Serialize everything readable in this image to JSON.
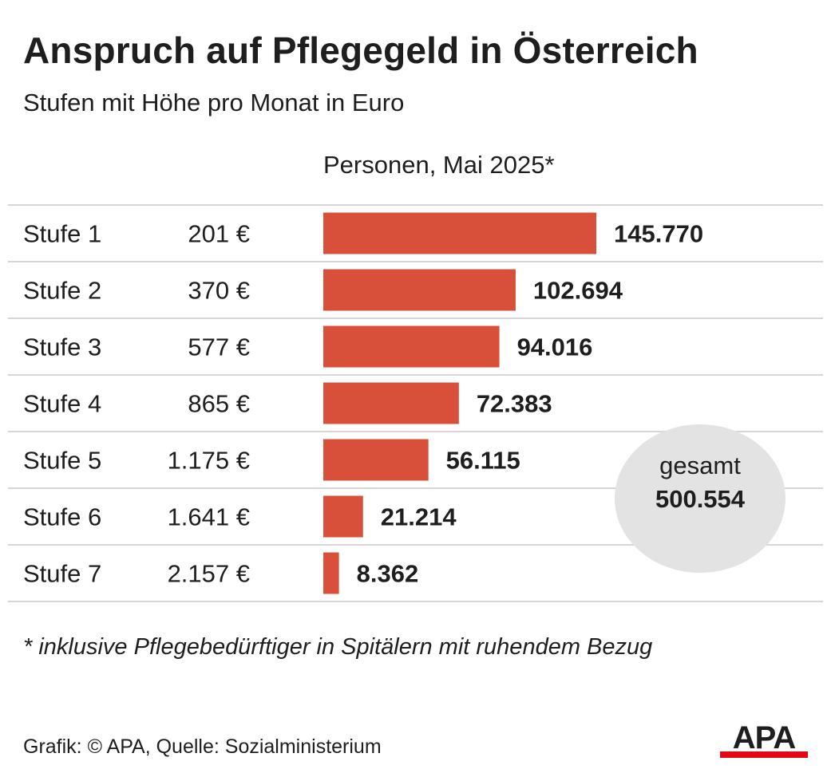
{
  "header": {
    "title": "Anspruch auf Pflegegeld in Österreich",
    "subtitle": "Stufen mit Höhe pro Monat in Euro",
    "column_header": "Personen, Mai 2025*"
  },
  "chart_data": {
    "type": "bar",
    "orientation": "horizontal",
    "categories": [
      "Stufe 1",
      "Stufe 2",
      "Stufe 3",
      "Stufe 4",
      "Stufe 5",
      "Stufe 6",
      "Stufe 7"
    ],
    "amounts": [
      "201 €",
      "370 €",
      "577 €",
      "865 €",
      "1.175 €",
      "1.641 €",
      "2.157 €"
    ],
    "values": [
      145770,
      102694,
      94016,
      72383,
      56115,
      21214,
      8362
    ],
    "value_labels": [
      "145.770",
      "102.694",
      "94.016",
      "72.383",
      "56.115",
      "21.214",
      "8.362"
    ],
    "bar_color": "#d9503a",
    "grid": true
  },
  "total": {
    "label": "gesamt",
    "value": "500.554"
  },
  "footnote": "* inklusive Pflegebedürftiger in Spitälern mit ruhendem Bezug",
  "source": "Grafik: © APA, Quelle: Sozialministerium",
  "logo": {
    "text": "APA",
    "color": "#e30613"
  }
}
